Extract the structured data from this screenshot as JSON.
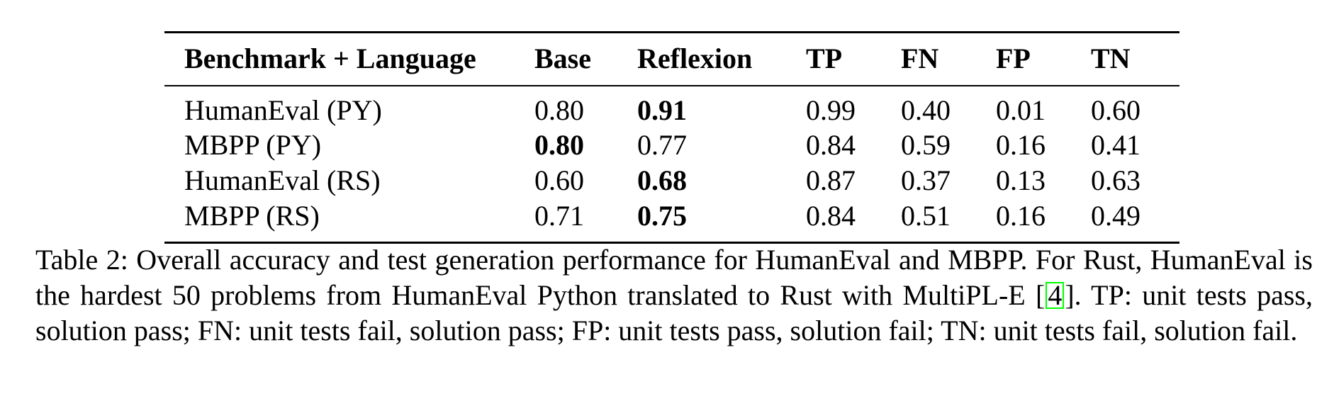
{
  "table": {
    "headers": [
      "Benchmark + Language",
      "Base",
      "Reflexion",
      "TP",
      "FN",
      "FP",
      "TN"
    ],
    "rows": [
      {
        "benchmark": "HumanEval (PY)",
        "base": "0.80",
        "reflexion": "0.91",
        "tp": "0.99",
        "fn": "0.40",
        "fp": "0.01",
        "tn": "0.60",
        "bold": "reflexion"
      },
      {
        "benchmark": "MBPP (PY)",
        "base": "0.80",
        "reflexion": "0.77",
        "tp": "0.84",
        "fn": "0.59",
        "fp": "0.16",
        "tn": "0.41",
        "bold": "base"
      },
      {
        "benchmark": "HumanEval (RS)",
        "base": "0.60",
        "reflexion": "0.68",
        "tp": "0.87",
        "fn": "0.37",
        "fp": "0.13",
        "tn": "0.63",
        "bold": "reflexion"
      },
      {
        "benchmark": "MBPP (RS)",
        "base": "0.71",
        "reflexion": "0.75",
        "tp": "0.84",
        "fn": "0.51",
        "fp": "0.16",
        "tn": "0.49",
        "bold": "reflexion"
      }
    ]
  },
  "caption": {
    "part1": "Table 2: Overall accuracy and test generation performance for HumanEval and MBPP. For Rust, HumanEval is the hardest 50 problems from HumanEval Python translated to Rust with MultiPL-E [",
    "citation": "4",
    "part2": "]. TP: unit tests pass, solution pass; FN: unit tests fail, solution pass; FP: unit tests pass, solution fail; TN: unit tests fail, solution fail."
  },
  "colors": {
    "citation_box": "#00ff00",
    "text": "#000000",
    "background": "#ffffff"
  }
}
